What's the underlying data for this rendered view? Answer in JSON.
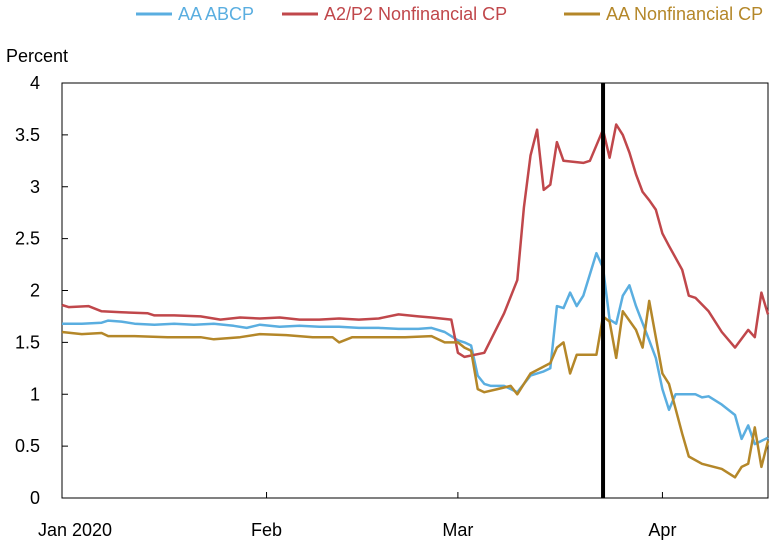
{
  "chart_data": {
    "type": "line",
    "title": "",
    "ylabel": "Percent",
    "xlabel": "",
    "ylim": [
      0,
      4
    ],
    "yticks": [
      0,
      0.5,
      1,
      1.5,
      2,
      2.5,
      3,
      3.5,
      4
    ],
    "ytick_labels": [
      "0",
      "0.5",
      "1",
      "1.5",
      "2",
      "2.5",
      "3",
      "3.5",
      "4"
    ],
    "xticks": [
      {
        "date": "2020-01-01",
        "label": "Jan 2020"
      },
      {
        "date": "2020-02-01",
        "label": "Feb"
      },
      {
        "date": "2020-03-01",
        "label": "Mar"
      },
      {
        "date": "2020-04-01",
        "label": "Apr"
      }
    ],
    "xlim": [
      "2020-01-01",
      "2020-04-17"
    ],
    "vline": {
      "date": "2020-03-23"
    },
    "legend_position": "top",
    "series": [
      {
        "name": "AA ABCP",
        "color": "#5aaee0",
        "points": [
          [
            "2020-01-01",
            1.68
          ],
          [
            "2020-01-04",
            1.68
          ],
          [
            "2020-01-07",
            1.69
          ],
          [
            "2020-01-08",
            1.71
          ],
          [
            "2020-01-10",
            1.7
          ],
          [
            "2020-01-12",
            1.68
          ],
          [
            "2020-01-15",
            1.67
          ],
          [
            "2020-01-18",
            1.68
          ],
          [
            "2020-01-21",
            1.67
          ],
          [
            "2020-01-24",
            1.68
          ],
          [
            "2020-01-27",
            1.66
          ],
          [
            "2020-01-29",
            1.64
          ],
          [
            "2020-01-31",
            1.67
          ],
          [
            "2020-02-03",
            1.65
          ],
          [
            "2020-02-06",
            1.66
          ],
          [
            "2020-02-09",
            1.65
          ],
          [
            "2020-02-12",
            1.65
          ],
          [
            "2020-02-15",
            1.64
          ],
          [
            "2020-02-18",
            1.64
          ],
          [
            "2020-02-21",
            1.63
          ],
          [
            "2020-02-24",
            1.63
          ],
          [
            "2020-02-26",
            1.64
          ],
          [
            "2020-02-28",
            1.6
          ],
          [
            "2020-03-01",
            1.52
          ],
          [
            "2020-03-02",
            1.5
          ],
          [
            "2020-03-03",
            1.47
          ],
          [
            "2020-03-04",
            1.18
          ],
          [
            "2020-03-05",
            1.1
          ],
          [
            "2020-03-06",
            1.08
          ],
          [
            "2020-03-08",
            1.08
          ],
          [
            "2020-03-10",
            1.02
          ],
          [
            "2020-03-12",
            1.18
          ],
          [
            "2020-03-14",
            1.22
          ],
          [
            "2020-03-15",
            1.25
          ],
          [
            "2020-03-16",
            1.85
          ],
          [
            "2020-03-17",
            1.83
          ],
          [
            "2020-03-18",
            1.98
          ],
          [
            "2020-03-19",
            1.85
          ],
          [
            "2020-03-20",
            1.95
          ],
          [
            "2020-03-22",
            2.36
          ],
          [
            "2020-03-23",
            2.22
          ],
          [
            "2020-03-24",
            1.72
          ],
          [
            "2020-03-25",
            1.68
          ],
          [
            "2020-03-26",
            1.95
          ],
          [
            "2020-03-27",
            2.05
          ],
          [
            "2020-03-28",
            1.85
          ],
          [
            "2020-03-30",
            1.52
          ],
          [
            "2020-03-31",
            1.35
          ],
          [
            "2020-04-01",
            1.05
          ],
          [
            "2020-04-02",
            0.85
          ],
          [
            "2020-04-03",
            1.0
          ],
          [
            "2020-04-06",
            1.0
          ],
          [
            "2020-04-07",
            0.97
          ],
          [
            "2020-04-08",
            0.98
          ],
          [
            "2020-04-10",
            0.9
          ],
          [
            "2020-04-12",
            0.8
          ],
          [
            "2020-04-13",
            0.57
          ],
          [
            "2020-04-14",
            0.7
          ],
          [
            "2020-04-15",
            0.52
          ],
          [
            "2020-04-17",
            0.58
          ]
        ]
      },
      {
        "name": "A2/P2 Nonfinancial CP",
        "color": "#c0474b",
        "points": [
          [
            "2020-01-01",
            1.86
          ],
          [
            "2020-01-02",
            1.84
          ],
          [
            "2020-01-05",
            1.85
          ],
          [
            "2020-01-07",
            1.8
          ],
          [
            "2020-01-10",
            1.79
          ],
          [
            "2020-01-14",
            1.78
          ],
          [
            "2020-01-15",
            1.76
          ],
          [
            "2020-01-18",
            1.76
          ],
          [
            "2020-01-22",
            1.75
          ],
          [
            "2020-01-25",
            1.72
          ],
          [
            "2020-01-28",
            1.74
          ],
          [
            "2020-01-31",
            1.73
          ],
          [
            "2020-02-03",
            1.74
          ],
          [
            "2020-02-06",
            1.72
          ],
          [
            "2020-02-09",
            1.72
          ],
          [
            "2020-02-12",
            1.73
          ],
          [
            "2020-02-15",
            1.72
          ],
          [
            "2020-02-18",
            1.73
          ],
          [
            "2020-02-21",
            1.77
          ],
          [
            "2020-02-24",
            1.75
          ],
          [
            "2020-02-26",
            1.74
          ],
          [
            "2020-02-29",
            1.72
          ],
          [
            "2020-03-01",
            1.4
          ],
          [
            "2020-03-02",
            1.36
          ],
          [
            "2020-03-05",
            1.4
          ],
          [
            "2020-03-08",
            1.78
          ],
          [
            "2020-03-10",
            2.1
          ],
          [
            "2020-03-11",
            2.8
          ],
          [
            "2020-03-12",
            3.3
          ],
          [
            "2020-03-13",
            3.55
          ],
          [
            "2020-03-14",
            2.97
          ],
          [
            "2020-03-15",
            3.02
          ],
          [
            "2020-03-16",
            3.43
          ],
          [
            "2020-03-17",
            3.25
          ],
          [
            "2020-03-20",
            3.23
          ],
          [
            "2020-03-21",
            3.25
          ],
          [
            "2020-03-23",
            3.55
          ],
          [
            "2020-03-24",
            3.28
          ],
          [
            "2020-03-25",
            3.6
          ],
          [
            "2020-03-26",
            3.5
          ],
          [
            "2020-03-27",
            3.33
          ],
          [
            "2020-03-28",
            3.12
          ],
          [
            "2020-03-29",
            2.95
          ],
          [
            "2020-03-30",
            2.87
          ],
          [
            "2020-03-31",
            2.78
          ],
          [
            "2020-04-01",
            2.55
          ],
          [
            "2020-04-02",
            2.43
          ],
          [
            "2020-04-04",
            2.2
          ],
          [
            "2020-04-05",
            1.95
          ],
          [
            "2020-04-06",
            1.93
          ],
          [
            "2020-04-08",
            1.8
          ],
          [
            "2020-04-10",
            1.6
          ],
          [
            "2020-04-12",
            1.45
          ],
          [
            "2020-04-14",
            1.62
          ],
          [
            "2020-04-15",
            1.55
          ],
          [
            "2020-04-16",
            1.98
          ],
          [
            "2020-04-17",
            1.77
          ]
        ]
      },
      {
        "name": "AA Nonfinancial CP",
        "color": "#b48729",
        "points": [
          [
            "2020-01-01",
            1.6
          ],
          [
            "2020-01-04",
            1.58
          ],
          [
            "2020-01-07",
            1.59
          ],
          [
            "2020-01-08",
            1.56
          ],
          [
            "2020-01-12",
            1.56
          ],
          [
            "2020-01-17",
            1.55
          ],
          [
            "2020-01-22",
            1.55
          ],
          [
            "2020-01-24",
            1.53
          ],
          [
            "2020-01-28",
            1.55
          ],
          [
            "2020-01-31",
            1.58
          ],
          [
            "2020-02-04",
            1.57
          ],
          [
            "2020-02-08",
            1.55
          ],
          [
            "2020-02-11",
            1.55
          ],
          [
            "2020-02-12",
            1.5
          ],
          [
            "2020-02-14",
            1.55
          ],
          [
            "2020-02-18",
            1.55
          ],
          [
            "2020-02-22",
            1.55
          ],
          [
            "2020-02-26",
            1.56
          ],
          [
            "2020-02-28",
            1.5
          ],
          [
            "2020-03-01",
            1.5
          ],
          [
            "2020-03-02",
            1.45
          ],
          [
            "2020-03-03",
            1.42
          ],
          [
            "2020-03-04",
            1.05
          ],
          [
            "2020-03-05",
            1.02
          ],
          [
            "2020-03-07",
            1.05
          ],
          [
            "2020-03-09",
            1.08
          ],
          [
            "2020-03-10",
            1.0
          ],
          [
            "2020-03-12",
            1.2
          ],
          [
            "2020-03-15",
            1.3
          ],
          [
            "2020-03-16",
            1.45
          ],
          [
            "2020-03-17",
            1.5
          ],
          [
            "2020-03-18",
            1.2
          ],
          [
            "2020-03-19",
            1.38
          ],
          [
            "2020-03-22",
            1.38
          ],
          [
            "2020-03-23",
            1.75
          ],
          [
            "2020-03-24",
            1.7
          ],
          [
            "2020-03-25",
            1.35
          ],
          [
            "2020-03-26",
            1.8
          ],
          [
            "2020-03-28",
            1.62
          ],
          [
            "2020-03-29",
            1.45
          ],
          [
            "2020-03-30",
            1.9
          ],
          [
            "2020-03-31",
            1.55
          ],
          [
            "2020-04-01",
            1.2
          ],
          [
            "2020-04-02",
            1.1
          ],
          [
            "2020-04-04",
            0.62
          ],
          [
            "2020-04-05",
            0.4
          ],
          [
            "2020-04-07",
            0.33
          ],
          [
            "2020-04-10",
            0.28
          ],
          [
            "2020-04-12",
            0.2
          ],
          [
            "2020-04-13",
            0.3
          ],
          [
            "2020-04-14",
            0.33
          ],
          [
            "2020-04-15",
            0.68
          ],
          [
            "2020-04-16",
            0.3
          ],
          [
            "2020-04-17",
            0.55
          ]
        ]
      }
    ]
  }
}
